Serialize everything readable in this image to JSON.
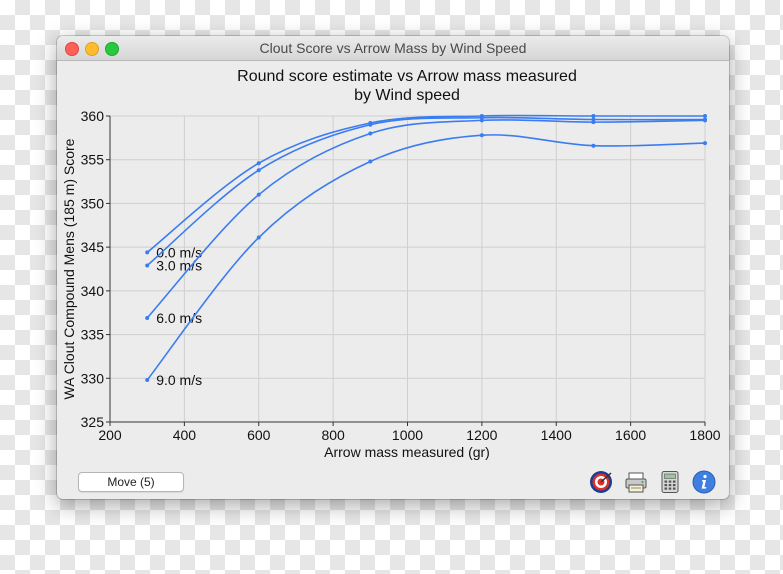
{
  "window": {
    "title": "Clout Score vs Arrow Mass by Wind Speed"
  },
  "footer": {
    "move_button_label": "Move (5)",
    "icons": [
      "target-icon",
      "printer-icon",
      "calculator-icon",
      "info-icon"
    ]
  },
  "chart_data": {
    "type": "line",
    "title": "Round score estimate vs Arrow mass measured",
    "subtitle": "by Wind speed",
    "xlabel": "Arrow mass measured (gr)",
    "ylabel": "WA Clout Compound Mens (185 m) Score",
    "xlim": [
      200,
      1800
    ],
    "ylim": [
      325,
      360
    ],
    "xticks": [
      200,
      400,
      600,
      800,
      1000,
      1200,
      1400,
      1600,
      1800
    ],
    "yticks": [
      325,
      330,
      335,
      340,
      345,
      350,
      355,
      360
    ],
    "grid": true,
    "color": "#3b7df0",
    "series": [
      {
        "name": "0.0 m/s",
        "x": [
          300,
          600,
          900,
          1200,
          1500,
          1800
        ],
        "y": [
          344.4,
          354.6,
          359.2,
          360.0,
          360.0,
          360.0
        ]
      },
      {
        "name": "3.0 m/s",
        "x": [
          300,
          600,
          900,
          1200,
          1500,
          1800
        ],
        "y": [
          342.9,
          353.8,
          359.0,
          359.8,
          359.6,
          359.6
        ]
      },
      {
        "name": "6.0 m/s",
        "x": [
          300,
          600,
          900,
          1200,
          1500,
          1800
        ],
        "y": [
          336.9,
          351.0,
          358.0,
          359.5,
          359.3,
          359.5
        ]
      },
      {
        "name": "9.0 m/s",
        "x": [
          300,
          600,
          900,
          1200,
          1500,
          1800
        ],
        "y": [
          329.8,
          346.1,
          354.8,
          357.8,
          356.6,
          356.9
        ]
      }
    ]
  }
}
